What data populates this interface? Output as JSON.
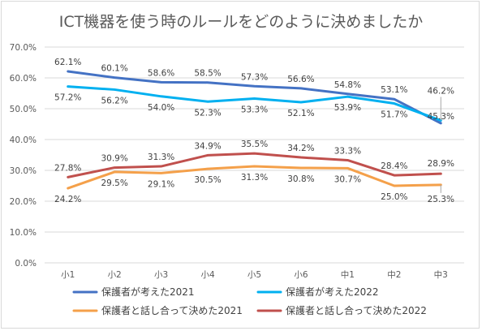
{
  "chart_data": {
    "type": "line",
    "title": "ICT機器を使う時のルールをどのように決めましたか",
    "categories": [
      "小1",
      "小2",
      "小3",
      "小4",
      "小5",
      "小6",
      "中1",
      "中2",
      "中3"
    ],
    "ylim": [
      0,
      70
    ],
    "yticks": [
      "0.0%",
      "10.0%",
      "20.0%",
      "30.0%",
      "40.0%",
      "50.0%",
      "60.0%",
      "70.0%"
    ],
    "grid": true,
    "legend_position": "bottom",
    "series": [
      {
        "name": "保護者が考えた2021",
        "color": "#4472c4",
        "values": [
          62.1,
          60.1,
          58.6,
          58.5,
          57.3,
          56.6,
          54.8,
          53.1,
          45.3
        ],
        "labels": [
          "62.1%",
          "60.1%",
          "58.6%",
          "58.5%",
          "57.3%",
          "56.6%",
          "54.8%",
          "53.1%",
          "45.3%"
        ]
      },
      {
        "name": "保護者が考えた2022",
        "color": "#00b0f0",
        "values": [
          57.2,
          56.2,
          54.0,
          52.3,
          53.3,
          52.1,
          53.9,
          51.7,
          46.2
        ],
        "labels": [
          "57.2%",
          "56.2%",
          "54.0%",
          "52.3%",
          "53.3%",
          "52.1%",
          "53.9%",
          "51.7%",
          "46.2%"
        ]
      },
      {
        "name": "保護者と話し合って決めた2021",
        "color": "#f4a04a",
        "values": [
          24.2,
          29.5,
          29.1,
          30.5,
          31.3,
          30.8,
          30.7,
          25.0,
          25.3
        ],
        "labels": [
          "24.2%",
          "29.5%",
          "29.1%",
          "30.5%",
          "31.3%",
          "30.8%",
          "30.7%",
          "25.0%",
          "25.3%"
        ]
      },
      {
        "name": "保護者と話し合って決めた2022",
        "color": "#c0504d",
        "values": [
          27.8,
          30.9,
          31.3,
          34.9,
          35.5,
          34.2,
          33.3,
          28.4,
          28.9
        ],
        "labels": [
          "27.8%",
          "30.9%",
          "31.3%",
          "34.9%",
          "35.5%",
          "34.2%",
          "33.3%",
          "28.4%",
          "28.9%"
        ]
      }
    ]
  }
}
